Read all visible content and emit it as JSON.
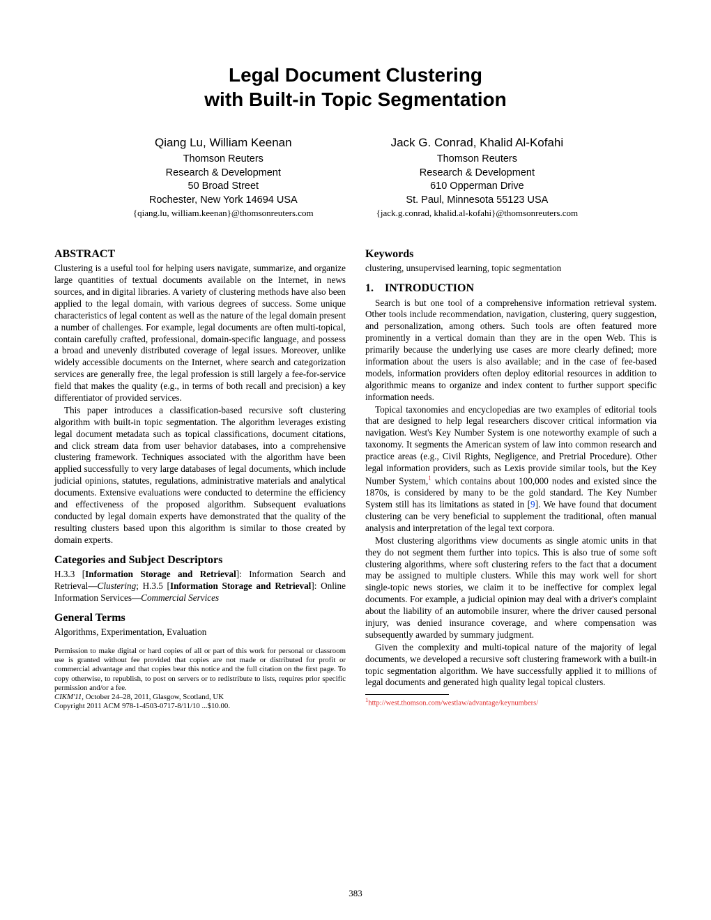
{
  "title_line1": "Legal Document Clustering",
  "title_line2": "with Built-in Topic Segmentation",
  "authors": [
    {
      "names": "Qiang Lu, William Keenan",
      "org": "Thomson Reuters",
      "dept": "Research & Development",
      "addr1": "50 Broad Street",
      "addr2": "Rochester, New York 14694   USA",
      "email": "{qiang.lu, william.keenan}@thomsonreuters.com"
    },
    {
      "names": "Jack G. Conrad, Khalid Al-Kofahi",
      "org": "Thomson Reuters",
      "dept": "Research & Development",
      "addr1": "610 Opperman Drive",
      "addr2": "St. Paul, Minnesota 55123   USA",
      "email": "{jack.g.conrad, khalid.al-kofahi}@thomsonreuters.com"
    }
  ],
  "abstract_title": "ABSTRACT",
  "abstract_p1": "Clustering is a useful tool for helping users navigate, summarize, and organize large quantities of textual documents available on the Internet, in news sources, and in digital libraries. A variety of clustering methods have also been applied to the legal domain, with various degrees of success. Some unique characteristics of legal content as well as the nature of the legal domain present a number of challenges. For example, legal documents are often multi-topical, contain carefully crafted, professional, domain-specific language, and possess a broad and unevenly distributed coverage of legal issues. Moreover, unlike widely accessible documents on the Internet, where search and categorization services are generally free, the legal profession is still largely a fee-for-service field that makes the quality (e.g., in terms of both recall and precision) a key differentiator of provided services.",
  "abstract_p2": "This paper introduces a classification-based recursive soft clustering algorithm with built-in topic segmentation. The algorithm leverages existing legal document metadata such as topical classifications, document citations, and click stream data from user behavior databases, into a comprehensive clustering framework. Techniques associated with the algorithm have been applied successfully to very large databases of legal documents, which include judicial opinions, statutes, regulations, administrative materials and analytical documents. Extensive evaluations were conducted to determine the efficiency and effectiveness of the proposed algorithm. Subsequent evaluations conducted by legal domain experts have demonstrated that the quality of the resulting clusters based upon this algorithm is similar to those created by domain experts.",
  "categories_title": "Categories and Subject Descriptors",
  "categories_body_pre": "H.3.3 [",
  "categories_b1": "Information Storage and Retrieval",
  "categories_mid1": "]: Information Search and Retrieval—",
  "categories_i1": "Clustering",
  "categories_mid2": "; H.3.5 [",
  "categories_b2": "Information Storage and Retrieval",
  "categories_mid3": "]: Online Information Services—",
  "categories_i2": "Commercial Services",
  "general_terms_title": "General Terms",
  "general_terms_body": "Algorithms, Experimentation, Evaluation",
  "permission": "Permission to make digital or hard copies of all or part of this work for personal or classroom use is granted without fee provided that copies are not made or distributed for profit or commercial advantage and that copies bear this notice and the full citation on the first page. To copy otherwise, to republish, to post on servers or to redistribute to lists, requires prior specific permission and/or a fee.",
  "venue": "CIKM'11,",
  "venue_rest": " October 24–28, 2011, Glasgow, Scotland, UK",
  "copyright": "Copyright 2011 ACM 978-1-4503-0717-8/11/10 ...$10.00.",
  "keywords_title": "Keywords",
  "keywords_body": "clustering, unsupervised learning, topic segmentation",
  "intro_num": "1.",
  "intro_title": "INTRODUCTION",
  "intro_p1": "Search is but one tool of a comprehensive information retrieval system. Other tools include recommendation, navigation, clustering, query suggestion, and personalization, among others. Such tools are often featured more prominently in a vertical domain than they are in the open Web. This is primarily because the underlying use cases are more clearly defined; more information about the users is also available; and in the case of fee-based models, information providers often deploy editorial resources in addition to algorithmic means to organize and index content to further support specific information needs.",
  "intro_p2_a": "Topical taxonomies and encyclopedias are two examples of editorial tools that are designed to help legal researchers discover critical information via navigation. West's Key Number System is one noteworthy example of such a taxonomy. It segments the American system of law into common research and practice areas (e.g., Civil Rights, Negligence, and Pretrial Procedure). Other legal information providers, such as Lexis provide similar tools, but the Key Number System,",
  "intro_p2_b": " which contains about 100,000 nodes and existed since the 1870s, is considered by many to be the gold standard. The Key Number System still has its limitations as stated in [",
  "intro_p2_cite": "9",
  "intro_p2_c": "]. We have found that document clustering can be very beneficial to supplement the traditional, often manual analysis and interpretation of the legal text corpora.",
  "intro_p3": "Most clustering algorithms view documents as single atomic units in that they do not segment them further into topics. This is also true of some soft clustering algorithms, where soft clustering refers to the fact that a document may be assigned to multiple clusters. While this may work well for short single-topic news stories, we claim it to be ineffective for complex legal documents. For example, a judicial opinion may deal with a driver's complaint about the liability of an automobile insurer, where the driver caused personal injury, was denied insurance coverage, and where compensation was subsequently awarded by summary judgment.",
  "intro_p4": "Given the complexity and multi-topical nature of the majority of legal documents, we developed a recursive soft clustering framework with a built-in topic segmentation algorithm. We have successfully applied it to millions of legal documents and generated high quality legal topical clusters.",
  "footnote_mark": "1",
  "footnote_url": "http://west.thomson.com/westlaw/advantage/keynumbers/",
  "page_number": "383"
}
